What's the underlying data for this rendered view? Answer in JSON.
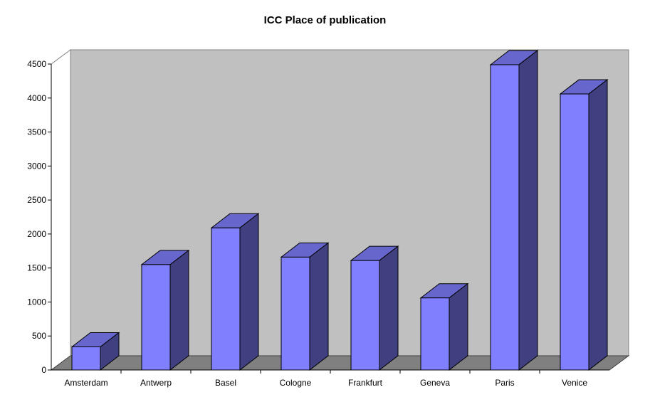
{
  "colors": {
    "bar_front": "#8080ff",
    "bar_top": "#6666cc",
    "bar_side": "#404080",
    "back_wall": "#c0c0c0",
    "floor": "#808080",
    "edge": "#000000"
  },
  "chart_data": {
    "type": "bar",
    "title": "ICC Place of publication",
    "xlabel": "",
    "ylabel": "",
    "categories": [
      "Amsterdam",
      "Antwerp",
      "Basel",
      "Cologne",
      "Frankfurt",
      "Geneva",
      "Paris",
      "Venice"
    ],
    "values": [
      340,
      1550,
      2090,
      1660,
      1610,
      1060,
      4490,
      4060
    ],
    "ylim": [
      0,
      4500
    ],
    "yticks": [
      "0",
      "500",
      "1000",
      "1500",
      "2000",
      "2500",
      "3000",
      "3500",
      "4000",
      "4500"
    ],
    "grid": false,
    "legend": "none",
    "style": "3d-column"
  }
}
